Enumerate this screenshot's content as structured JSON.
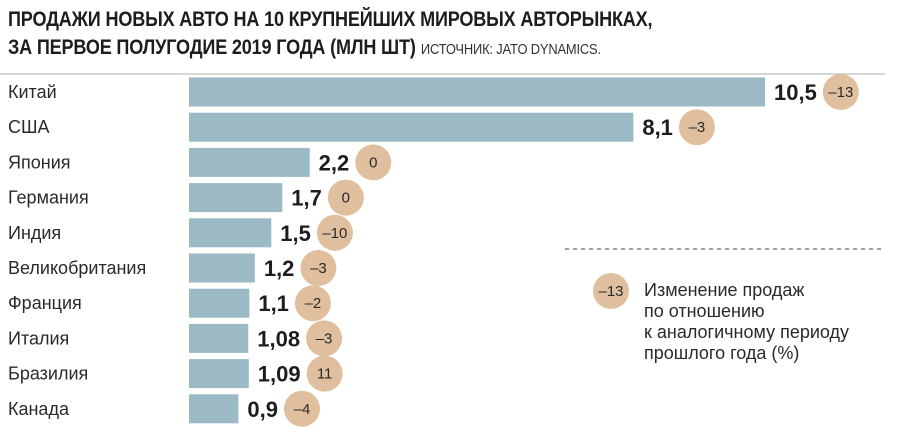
{
  "title": {
    "line1": "ПРОДАЖИ НОВЫХ АВТО НА 10 КРУПНЕЙШИХ МИРОВЫХ АВТОРЫНКАХ,",
    "line2": "ЗА ПЕРВОЕ ПОЛУГОДИЕ 2019 ГОДА (МЛН ШТ)",
    "source": "ИСТОЧНИК: JATO DYNAMICS."
  },
  "legend": {
    "badge": "–13",
    "lines": [
      "Изменение продаж",
      "по отношению",
      "к аналогичному периоду",
      "прошлого года (%)"
    ]
  },
  "colors": {
    "bar": "#9bbac6",
    "badge": "#dfbf9d",
    "rule": "#bfbfbf"
  },
  "chart_data": {
    "type": "bar",
    "orientation": "horizontal",
    "unit": "млн шт",
    "categories": [
      "Китай",
      "США",
      "Япония",
      "Германия",
      "Индия",
      "Великобритания",
      "Франция",
      "Италия",
      "Бразилия",
      "Канада"
    ],
    "values": [
      10.5,
      8.1,
      2.2,
      1.7,
      1.5,
      1.2,
      1.1,
      1.08,
      1.09,
      0.9
    ],
    "value_labels": [
      "10,5",
      "8,1",
      "2,2",
      "1,7",
      "1,5",
      "1,2",
      "1,1",
      "1,08",
      "1,09",
      "0,9"
    ],
    "change_percent": [
      -13,
      -3,
      0,
      0,
      -10,
      -3,
      -2,
      -3,
      11,
      -4
    ],
    "change_labels": [
      "–13",
      "–3",
      "0",
      "0",
      "–10",
      "–3",
      "–2",
      "–3",
      "11",
      "–4"
    ],
    "xlim": [
      0,
      10.5
    ],
    "grid": false,
    "legend_position": "right"
  }
}
